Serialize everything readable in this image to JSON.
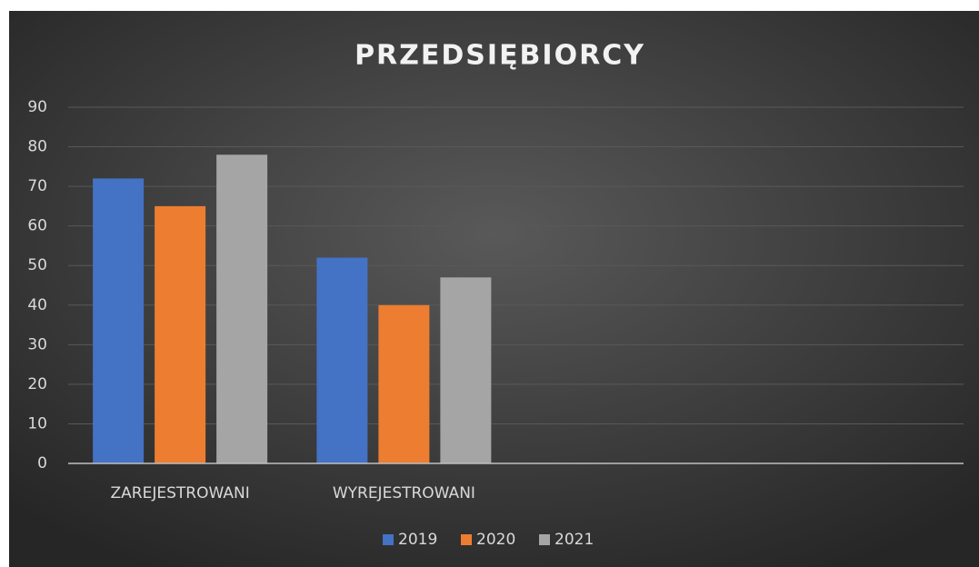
{
  "chart_data": {
    "type": "bar",
    "title": "PRZEDSIĘBIORCY",
    "categories": [
      "ZAREJESTROWANI",
      "WYREJESTROWANI",
      null,
      null
    ],
    "series": [
      {
        "name": "2019",
        "color": "#4472c4",
        "values": [
          72,
          52,
          null,
          null
        ]
      },
      {
        "name": "2020",
        "color": "#ed7d31",
        "values": [
          65,
          40,
          null,
          null
        ]
      },
      {
        "name": "2021",
        "color": "#a5a5a5",
        "values": [
          78,
          47,
          null,
          null
        ]
      }
    ],
    "ylim": [
      0,
      90
    ],
    "yticks": [
      0,
      10,
      20,
      30,
      40,
      50,
      60,
      70,
      80,
      90
    ],
    "grid": true,
    "legend": "bottom"
  }
}
